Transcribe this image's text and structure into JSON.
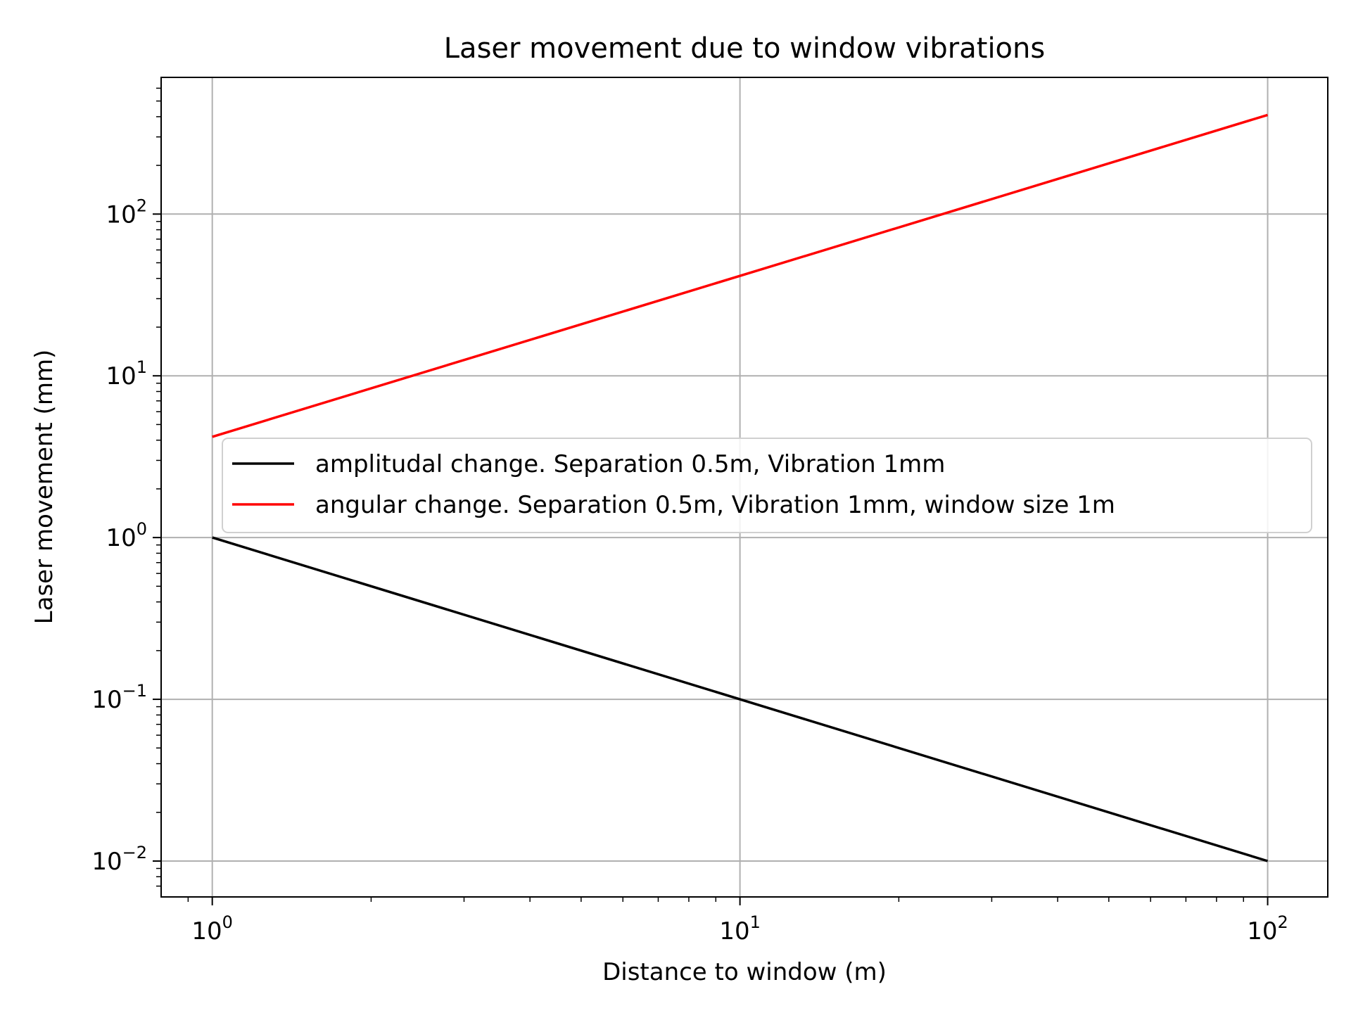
{
  "chart_data": {
    "type": "line",
    "title": "Laser movement due to window vibrations",
    "xlabel": "Distance to window (m)",
    "ylabel": "Laser movement (mm)",
    "xscale": "log",
    "yscale": "log",
    "xlim": [
      0.8,
      130
    ],
    "ylim": [
      0.006,
      700
    ],
    "grid": true,
    "legend_position": "center-right",
    "x_ticks": [
      {
        "value": 1,
        "base": "10",
        "exp": "0"
      },
      {
        "value": 10,
        "base": "10",
        "exp": "1"
      },
      {
        "value": 100,
        "base": "10",
        "exp": "2"
      }
    ],
    "y_ticks": [
      {
        "value": 0.01,
        "base": "10",
        "exp": "−2"
      },
      {
        "value": 0.1,
        "base": "10",
        "exp": "−1"
      },
      {
        "value": 1,
        "base": "10",
        "exp": "0"
      },
      {
        "value": 10,
        "base": "10",
        "exp": "1"
      },
      {
        "value": 100,
        "base": "10",
        "exp": "2"
      }
    ],
    "series": [
      {
        "name": "amplitudal change. Separation 0.5m, Vibration 1mm",
        "color": "#000000",
        "x": [
          1,
          100
        ],
        "y": [
          1,
          0.01
        ]
      },
      {
        "name": "angular change. Separation 0.5m, Vibration 1mm, window size 1m",
        "color": "#ff0000",
        "x": [
          1,
          100
        ],
        "y": [
          4.2,
          410
        ]
      }
    ]
  }
}
